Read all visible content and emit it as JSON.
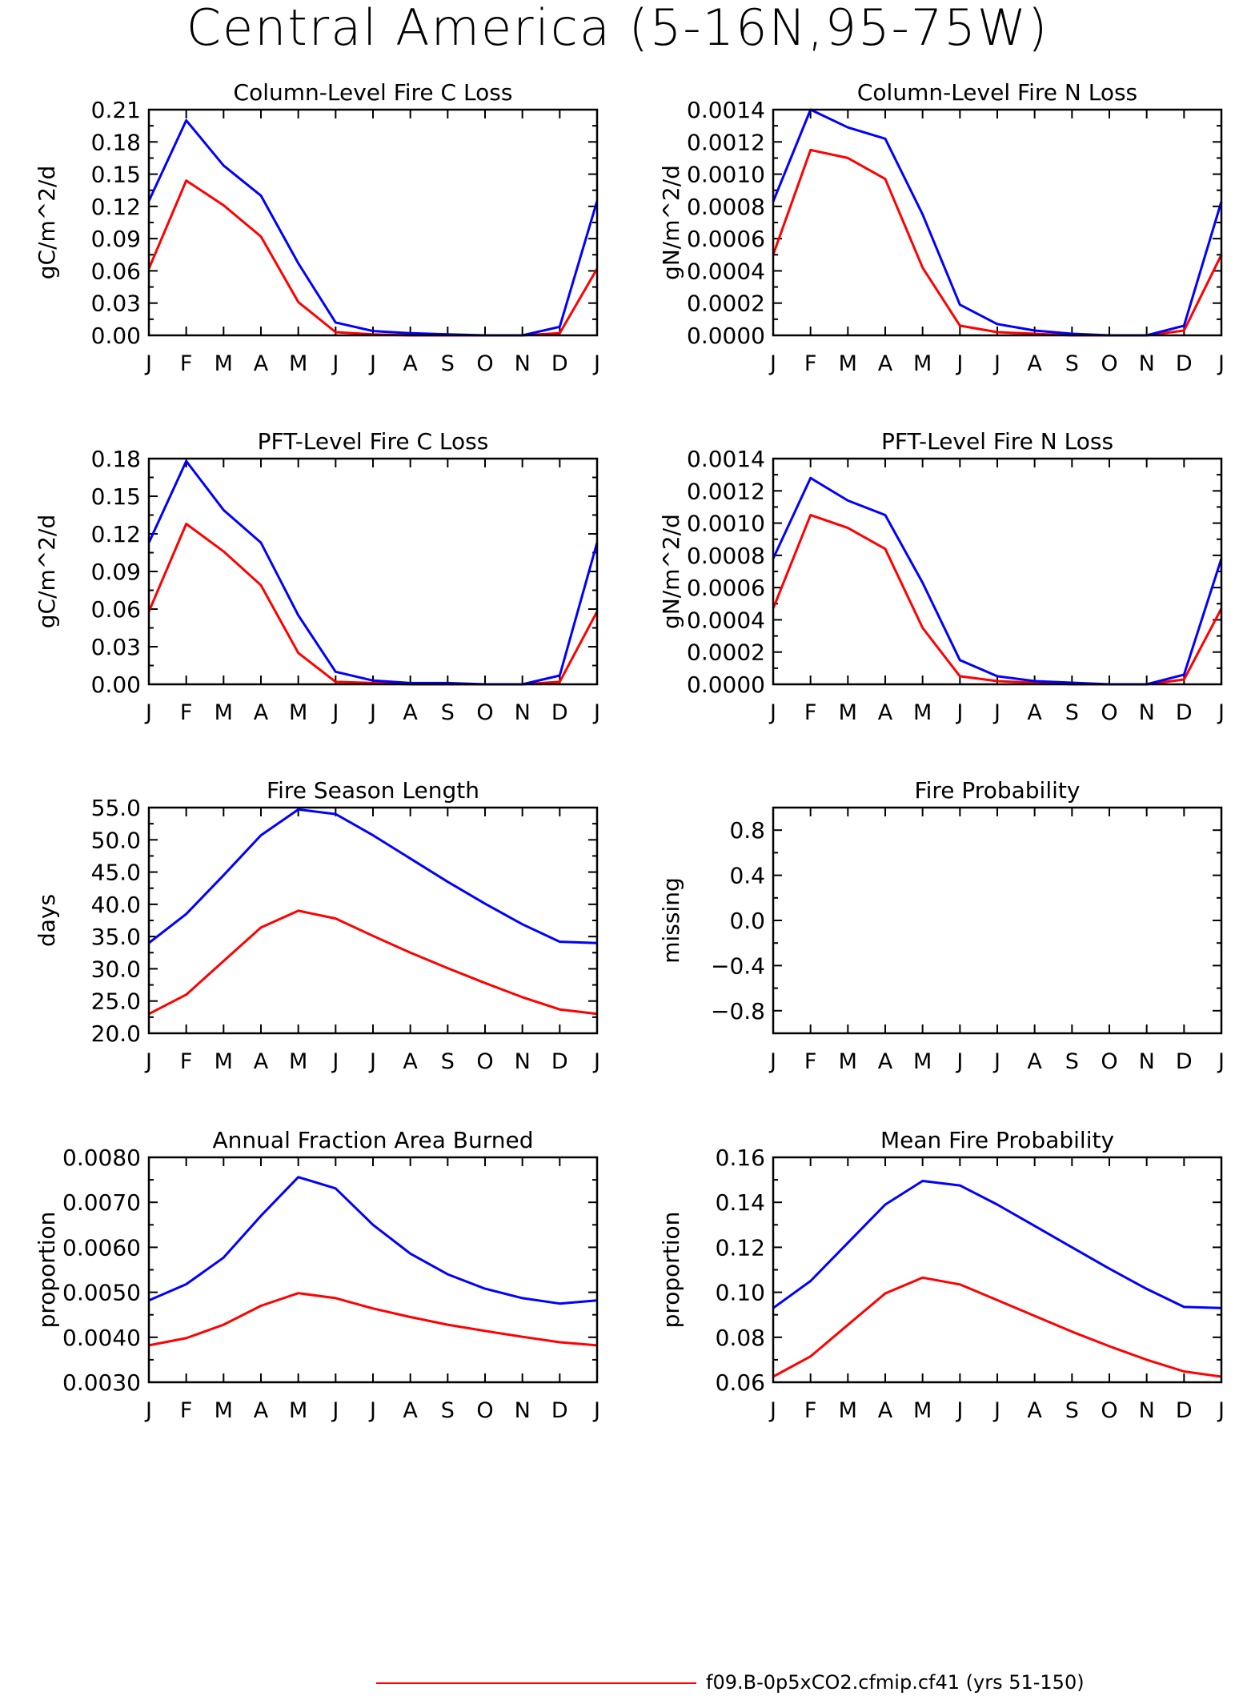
{
  "title": "Central America (5-16N,95-75W)",
  "colors": {
    "run1": "#ff0000",
    "run2": "#0000ff"
  },
  "legend": {
    "label": "f09.B-0p5xCO2.cfmip.cf41 (yrs 51-150)",
    "color": "#ff0000"
  },
  "chart_data": [
    {
      "type": "line",
      "title": "Column-Level Fire C Loss",
      "ylabel": "gC/m^2/d",
      "categories": [
        "J",
        "F",
        "M",
        "A",
        "M",
        "J",
        "J",
        "A",
        "S",
        "O",
        "N",
        "D",
        "J"
      ],
      "ylim": [
        0,
        0.21
      ],
      "yticks": [
        "0.00",
        "0.03",
        "0.06",
        "0.09",
        "0.12",
        "0.15",
        "0.18",
        "0.21"
      ],
      "series": [
        {
          "color": "#ff0000",
          "values": [
            0.062,
            0.144,
            0.121,
            0.092,
            0.031,
            0.003,
            0.001,
            0.0,
            0.0,
            0.0,
            0.0,
            0.002,
            0.062
          ]
        },
        {
          "color": "#0000ff",
          "values": [
            0.125,
            0.2,
            0.158,
            0.13,
            0.067,
            0.012,
            0.004,
            0.002,
            0.001,
            0.0,
            0.0,
            0.008,
            0.125
          ]
        }
      ]
    },
    {
      "type": "line",
      "title": "Column-Level Fire N Loss",
      "ylabel": "gN/m^2/d",
      "categories": [
        "J",
        "F",
        "M",
        "A",
        "M",
        "J",
        "J",
        "A",
        "S",
        "O",
        "N",
        "D",
        "J"
      ],
      "ylim": [
        0,
        0.0014
      ],
      "yticks": [
        "0.0000",
        "0.0002",
        "0.0004",
        "0.0006",
        "0.0008",
        "0.0010",
        "0.0012",
        "0.0014"
      ],
      "series": [
        {
          "color": "#ff0000",
          "values": [
            0.0005,
            0.00115,
            0.0011,
            0.00097,
            0.00042,
            6e-05,
            2e-05,
            1e-05,
            0.0,
            0.0,
            0.0,
            3e-05,
            0.0005
          ]
        },
        {
          "color": "#0000ff",
          "values": [
            0.00083,
            0.0014,
            0.00129,
            0.00122,
            0.00075,
            0.00019,
            7e-05,
            3e-05,
            1e-05,
            0.0,
            0.0,
            6e-05,
            0.00083
          ]
        }
      ]
    },
    {
      "type": "line",
      "title": "PFT-Level Fire C Loss",
      "ylabel": "gC/m^2/d",
      "categories": [
        "J",
        "F",
        "M",
        "A",
        "M",
        "J",
        "J",
        "A",
        "S",
        "O",
        "N",
        "D",
        "J"
      ],
      "ylim": [
        0,
        0.18
      ],
      "yticks": [
        "0.00",
        "0.03",
        "0.06",
        "0.09",
        "0.12",
        "0.15",
        "0.18"
      ],
      "series": [
        {
          "color": "#ff0000",
          "values": [
            0.058,
            0.128,
            0.106,
            0.079,
            0.025,
            0.002,
            0.001,
            0.0,
            0.0,
            0.0,
            0.0,
            0.002,
            0.058
          ]
        },
        {
          "color": "#0000ff",
          "values": [
            0.113,
            0.178,
            0.139,
            0.113,
            0.055,
            0.01,
            0.003,
            0.001,
            0.001,
            0.0,
            0.0,
            0.007,
            0.113
          ]
        }
      ]
    },
    {
      "type": "line",
      "title": "PFT-Level Fire N Loss",
      "ylabel": "gN/m^2/d",
      "categories": [
        "J",
        "F",
        "M",
        "A",
        "M",
        "J",
        "J",
        "A",
        "S",
        "O",
        "N",
        "D",
        "J"
      ],
      "ylim": [
        0,
        0.0014
      ],
      "yticks": [
        "0.0000",
        "0.0002",
        "0.0004",
        "0.0006",
        "0.0008",
        "0.0010",
        "0.0012",
        "0.0014"
      ],
      "series": [
        {
          "color": "#ff0000",
          "values": [
            0.00047,
            0.00105,
            0.00097,
            0.00084,
            0.00035,
            5e-05,
            2e-05,
            1e-05,
            0.0,
            0.0,
            0.0,
            3e-05,
            0.00047
          ]
        },
        {
          "color": "#0000ff",
          "values": [
            0.00078,
            0.00128,
            0.00114,
            0.00105,
            0.00063,
            0.00015,
            5e-05,
            2e-05,
            1e-05,
            0.0,
            0.0,
            6e-05,
            0.00078
          ]
        }
      ]
    },
    {
      "type": "line",
      "title": "Fire Season Length",
      "ylabel": "days",
      "categories": [
        "J",
        "F",
        "M",
        "A",
        "M",
        "J",
        "J",
        "A",
        "S",
        "O",
        "N",
        "D",
        "J"
      ],
      "ylim": [
        20,
        55
      ],
      "yticks": [
        "20.0",
        "25.0",
        "30.0",
        "35.0",
        "40.0",
        "45.0",
        "50.0",
        "55.0"
      ],
      "series": [
        {
          "color": "#ff0000",
          "values": [
            23.0,
            26.0,
            31.2,
            36.4,
            39.0,
            37.8,
            35.1,
            32.5,
            30.1,
            27.8,
            25.6,
            23.7,
            23.0
          ]
        },
        {
          "color": "#0000ff",
          "values": [
            34.0,
            38.5,
            44.5,
            50.7,
            54.7,
            54.0,
            50.7,
            47.1,
            43.5,
            40.1,
            36.9,
            34.2,
            34.0
          ]
        }
      ]
    },
    {
      "type": "line",
      "title": "Fire Probability",
      "ylabel": "missing",
      "categories": [
        "J",
        "F",
        "M",
        "A",
        "M",
        "J",
        "J",
        "A",
        "S",
        "O",
        "N",
        "D",
        "J"
      ],
      "ylim": [
        -1,
        1
      ],
      "yticks": [
        "-0.8",
        "-0.4",
        "0.0",
        "0.4",
        "0.8"
      ],
      "series": []
    },
    {
      "type": "line",
      "title": "Annual Fraction Area Burned",
      "ylabel": "proportion",
      "categories": [
        "J",
        "F",
        "M",
        "A",
        "M",
        "J",
        "J",
        "A",
        "S",
        "O",
        "N",
        "D",
        "J"
      ],
      "ylim": [
        0.003,
        0.008
      ],
      "yticks": [
        "0.0030",
        "0.0040",
        "0.0050",
        "0.0060",
        "0.0070",
        "0.0080"
      ],
      "series": [
        {
          "color": "#ff0000",
          "values": [
            0.00382,
            0.00398,
            0.00428,
            0.0047,
            0.00498,
            0.00487,
            0.00464,
            0.00445,
            0.00428,
            0.00414,
            0.00401,
            0.00389,
            0.00382
          ]
        },
        {
          "color": "#0000ff",
          "values": [
            0.00482,
            0.00518,
            0.00577,
            0.0067,
            0.00756,
            0.00731,
            0.0065,
            0.00586,
            0.0054,
            0.00508,
            0.00487,
            0.00475,
            0.00482
          ]
        }
      ]
    },
    {
      "type": "line",
      "title": "Mean Fire Probability",
      "ylabel": "proportion",
      "categories": [
        "J",
        "F",
        "M",
        "A",
        "M",
        "J",
        "J",
        "A",
        "S",
        "O",
        "N",
        "D",
        "J"
      ],
      "ylim": [
        0.06,
        0.16
      ],
      "yticks": [
        "0.06",
        "0.08",
        "0.10",
        "0.12",
        "0.14",
        "0.16"
      ],
      "series": [
        {
          "color": "#ff0000",
          "values": [
            0.0625,
            0.0715,
            0.0855,
            0.0995,
            0.1065,
            0.1035,
            0.0965,
            0.0895,
            0.0825,
            0.076,
            0.07,
            0.0648,
            0.0625
          ]
        },
        {
          "color": "#0000ff",
          "values": [
            0.093,
            0.105,
            0.122,
            0.139,
            0.1495,
            0.1475,
            0.139,
            0.1295,
            0.12,
            0.1105,
            0.1015,
            0.0935,
            0.093
          ]
        }
      ]
    }
  ]
}
